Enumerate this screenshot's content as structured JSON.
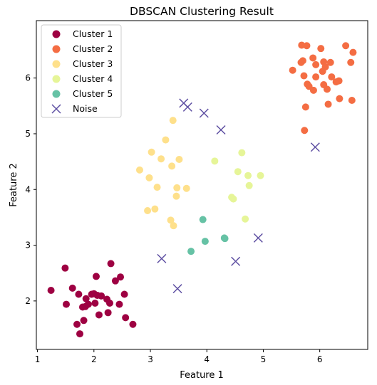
{
  "chart_data": {
    "type": "scatter",
    "title": "DBSCAN Clustering Result",
    "xlabel": "Feature 1",
    "ylabel": "Feature 2",
    "xlim": [
      0.98,
      6.85
    ],
    "ylim": [
      1.13,
      7.03
    ],
    "xticks": [
      1,
      2,
      3,
      4,
      5,
      6
    ],
    "yticks": [
      2,
      3,
      4,
      5,
      6
    ],
    "grid": false,
    "legend_position": "top-left",
    "series": [
      {
        "name": "Cluster 1",
        "marker": "circle",
        "color": "#9e0142",
        "points": [
          [
            1.24,
            2.19
          ],
          [
            1.49,
            2.59
          ],
          [
            1.51,
            1.94
          ],
          [
            1.62,
            2.23
          ],
          [
            1.7,
            1.58
          ],
          [
            1.73,
            2.12
          ],
          [
            1.75,
            1.41
          ],
          [
            1.8,
            1.89
          ],
          [
            1.82,
            1.65
          ],
          [
            1.85,
            1.9
          ],
          [
            1.86,
            2.04
          ],
          [
            1.9,
            1.94
          ],
          [
            1.96,
            2.12
          ],
          [
            2.0,
            2.13
          ],
          [
            2.02,
            1.96
          ],
          [
            2.04,
            2.44
          ],
          [
            2.06,
            2.1
          ],
          [
            2.09,
            1.75
          ],
          [
            2.13,
            2.09
          ],
          [
            2.23,
            2.03
          ],
          [
            2.25,
            1.79
          ],
          [
            2.28,
            1.96
          ],
          [
            2.3,
            2.67
          ],
          [
            2.38,
            2.36
          ],
          [
            2.45,
            1.94
          ],
          [
            2.47,
            2.43
          ],
          [
            2.54,
            2.12
          ],
          [
            2.56,
            1.7
          ],
          [
            2.69,
            1.58
          ]
        ]
      },
      {
        "name": "Cluster 2",
        "marker": "circle",
        "color": "#f46d43",
        "points": [
          [
            5.52,
            6.14
          ],
          [
            5.67,
            6.28
          ],
          [
            5.7,
            6.31
          ],
          [
            5.68,
            6.59
          ],
          [
            5.77,
            6.58
          ],
          [
            5.72,
            6.04
          ],
          [
            5.78,
            5.89
          ],
          [
            5.75,
            5.48
          ],
          [
            5.73,
            5.06
          ],
          [
            5.81,
            5.85
          ],
          [
            5.89,
            5.78
          ],
          [
            5.88,
            6.36
          ],
          [
            5.93,
            6.24
          ],
          [
            5.93,
            6.02
          ],
          [
            6.02,
            6.53
          ],
          [
            6.05,
            6.12
          ],
          [
            6.07,
            6.29
          ],
          [
            6.07,
            5.88
          ],
          [
            6.1,
            6.2
          ],
          [
            6.13,
            5.8
          ],
          [
            6.15,
            5.53
          ],
          [
            6.19,
            6.28
          ],
          [
            6.21,
            6.02
          ],
          [
            6.29,
            5.93
          ],
          [
            6.34,
            5.95
          ],
          [
            6.35,
            5.63
          ],
          [
            6.46,
            6.58
          ],
          [
            6.55,
            6.28
          ],
          [
            6.57,
            5.6
          ],
          [
            6.59,
            6.46
          ]
        ]
      },
      {
        "name": "Cluster 3",
        "marker": "circle",
        "color": "#fee08b",
        "points": [
          [
            2.81,
            4.35
          ],
          [
            2.95,
            3.62
          ],
          [
            2.98,
            4.21
          ],
          [
            3.02,
            4.67
          ],
          [
            3.08,
            3.65
          ],
          [
            3.12,
            4.04
          ],
          [
            3.19,
            4.55
          ],
          [
            3.27,
            4.89
          ],
          [
            3.36,
            3.45
          ],
          [
            3.38,
            4.42
          ],
          [
            3.4,
            5.24
          ],
          [
            3.41,
            3.35
          ],
          [
            3.46,
            3.88
          ],
          [
            3.47,
            4.03
          ],
          [
            3.51,
            4.54
          ],
          [
            3.64,
            4.02
          ]
        ]
      },
      {
        "name": "Cluster 4",
        "marker": "circle",
        "color": "#e6f598",
        "points": [
          [
            4.14,
            4.51
          ],
          [
            4.44,
            3.86
          ],
          [
            4.47,
            3.83
          ],
          [
            4.55,
            4.32
          ],
          [
            4.62,
            4.66
          ],
          [
            4.68,
            3.47
          ],
          [
            4.73,
            4.25
          ],
          [
            4.75,
            4.07
          ],
          [
            4.95,
            4.25
          ]
        ]
      },
      {
        "name": "Cluster 5",
        "marker": "circle",
        "color": "#66c2a5",
        "points": [
          [
            3.72,
            2.89
          ],
          [
            3.93,
            3.46
          ],
          [
            3.97,
            3.07
          ],
          [
            4.31,
            3.13
          ],
          [
            4.32,
            3.12
          ]
        ]
      },
      {
        "name": "Noise",
        "marker": "x",
        "color": "#5e4fa2",
        "points": [
          [
            3.2,
            2.76
          ],
          [
            3.48,
            2.22
          ],
          [
            3.59,
            5.55
          ],
          [
            3.66,
            5.48
          ],
          [
            3.95,
            5.37
          ],
          [
            4.25,
            5.07
          ],
          [
            4.51,
            2.71
          ],
          [
            4.91,
            3.13
          ],
          [
            5.92,
            4.76
          ]
        ]
      }
    ]
  }
}
